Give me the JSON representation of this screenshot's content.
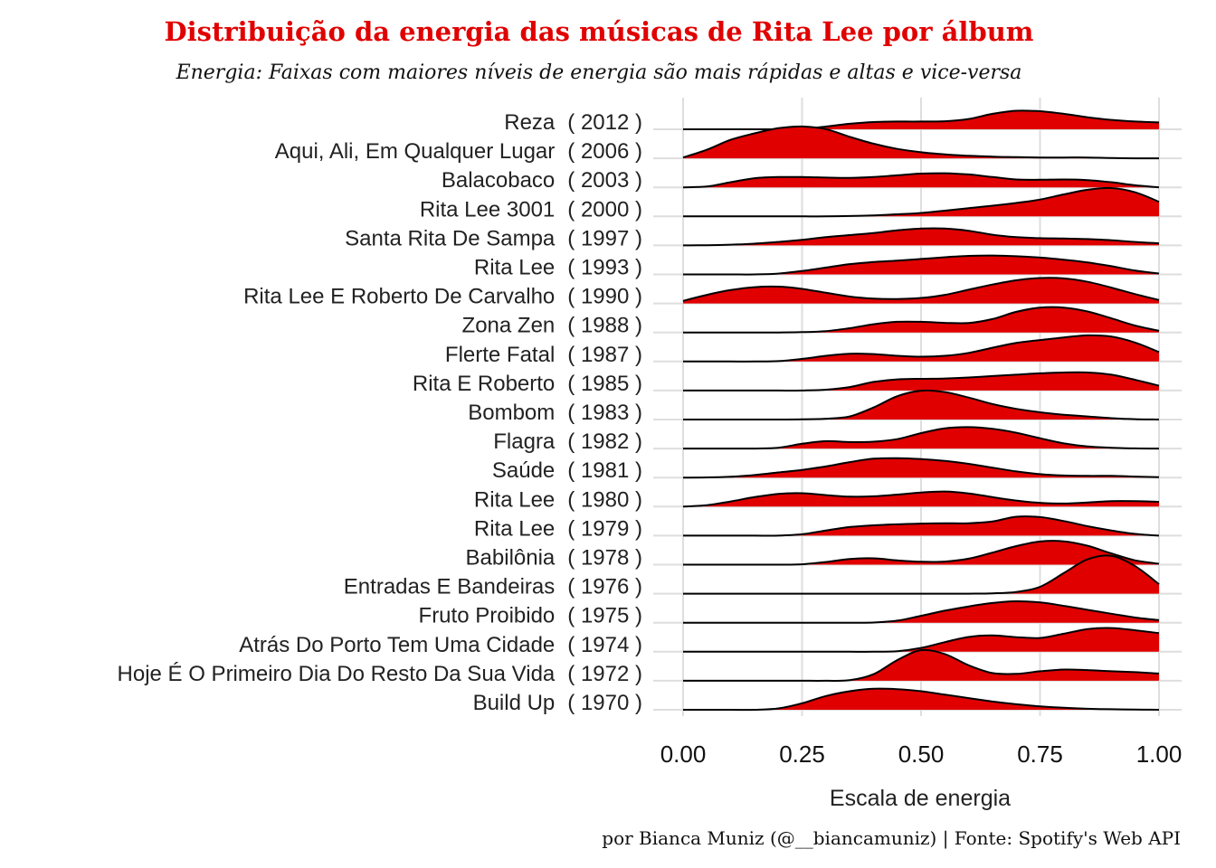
{
  "chart_data": {
    "type": "ridgeline",
    "title": "Distribuição da energia das músicas de Rita Lee por álbum",
    "subtitle": "Energia: Faixas com maiores níveis de energia são mais rápidas e altas e vice-versa",
    "xlabel": "Escala de energia",
    "caption": "por Bianca Muniz (@__biancamuniz) | Fonte: Spotify's Web API",
    "xlim": [
      0,
      1
    ],
    "x_ticks": [
      "0.00",
      "0.25",
      "0.50",
      "0.75",
      "1.00"
    ],
    "fill_color": "#e00000",
    "line_color": "#000000",
    "grid": true,
    "density_x": [
      0,
      0.05,
      0.1,
      0.15,
      0.2,
      0.25,
      0.3,
      0.35,
      0.4,
      0.45,
      0.5,
      0.55,
      0.6,
      0.65,
      0.7,
      0.75,
      0.8,
      0.85,
      0.9,
      0.95,
      1.0
    ],
    "series": [
      {
        "album": "Reza",
        "year": "( 2012 )",
        "density": [
          0.0,
          0.0,
          0.0,
          0.0,
          0.0,
          0.03,
          0.16,
          0.32,
          0.42,
          0.45,
          0.45,
          0.47,
          0.6,
          0.9,
          1.08,
          1.05,
          0.9,
          0.7,
          0.55,
          0.45,
          0.4
        ]
      },
      {
        "album": "Aqui, Ali, Em Qualquer Lugar",
        "year": "( 2006 )",
        "density": [
          0.05,
          0.5,
          1.08,
          1.45,
          1.75,
          1.85,
          1.7,
          1.25,
          0.85,
          0.55,
          0.35,
          0.23,
          0.15,
          0.1,
          0.07,
          0.05,
          0.05,
          0.05,
          0.02,
          0.0,
          0.0
        ]
      },
      {
        "album": "Balacobaco",
        "year": "( 2003 )",
        "density": [
          0.0,
          0.05,
          0.3,
          0.53,
          0.6,
          0.6,
          0.57,
          0.55,
          0.6,
          0.7,
          0.8,
          0.82,
          0.75,
          0.6,
          0.46,
          0.44,
          0.46,
          0.42,
          0.3,
          0.12,
          0.0
        ]
      },
      {
        "album": "Rita Lee 3001",
        "year": "( 2000 )",
        "density": [
          0.0,
          0.0,
          0.0,
          0.0,
          0.0,
          0.0,
          0.0,
          0.02,
          0.06,
          0.12,
          0.2,
          0.33,
          0.48,
          0.62,
          0.78,
          0.98,
          1.28,
          1.55,
          1.65,
          1.4,
          0.85
        ]
      },
      {
        "album": "Santa Rita De Sampa",
        "year": "( 1997 )",
        "density": [
          0.0,
          0.01,
          0.04,
          0.1,
          0.2,
          0.32,
          0.48,
          0.6,
          0.72,
          0.88,
          0.98,
          0.98,
          0.85,
          0.62,
          0.48,
          0.42,
          0.4,
          0.37,
          0.3,
          0.2,
          0.12
        ]
      },
      {
        "album": "Rita Lee",
        "year": "( 1993 )",
        "density": [
          0.0,
          0.0,
          0.0,
          0.0,
          0.05,
          0.2,
          0.4,
          0.6,
          0.72,
          0.8,
          0.9,
          1.0,
          1.08,
          1.1,
          1.06,
          0.98,
          0.86,
          0.7,
          0.48,
          0.22,
          0.05
        ]
      },
      {
        "album": "Rita Lee E Roberto De Carvalho",
        "year": "( 1990 )",
        "density": [
          0.15,
          0.5,
          0.78,
          0.95,
          0.98,
          0.85,
          0.62,
          0.4,
          0.28,
          0.26,
          0.32,
          0.5,
          0.8,
          1.1,
          1.35,
          1.48,
          1.46,
          1.26,
          0.92,
          0.54,
          0.2
        ]
      },
      {
        "album": "Zona Zen",
        "year": "( 1988 )",
        "density": [
          0.0,
          0.0,
          0.0,
          0.0,
          0.0,
          0.02,
          0.08,
          0.25,
          0.48,
          0.62,
          0.62,
          0.56,
          0.55,
          0.78,
          1.2,
          1.45,
          1.45,
          1.22,
          0.82,
          0.4,
          0.1
        ]
      },
      {
        "album": "Flerte Fatal",
        "year": "( 1987 )",
        "density": [
          0.0,
          0.0,
          0.0,
          0.0,
          0.02,
          0.15,
          0.33,
          0.45,
          0.43,
          0.33,
          0.28,
          0.33,
          0.5,
          0.8,
          1.08,
          1.25,
          1.4,
          1.52,
          1.45,
          1.1,
          0.55
        ]
      },
      {
        "album": "Rita E Roberto",
        "year": "( 1985 )",
        "density": [
          0.0,
          0.0,
          0.0,
          0.0,
          0.0,
          0.0,
          0.05,
          0.2,
          0.5,
          0.65,
          0.68,
          0.7,
          0.76,
          0.84,
          0.92,
          1.0,
          1.05,
          1.05,
          0.92,
          0.62,
          0.28
        ]
      },
      {
        "album": "Bombom",
        "year": "( 1983 )",
        "density": [
          0.0,
          0.0,
          0.0,
          0.0,
          0.0,
          0.01,
          0.05,
          0.18,
          0.7,
          1.36,
          1.68,
          1.6,
          1.28,
          0.9,
          0.62,
          0.42,
          0.28,
          0.18,
          0.08,
          0.02,
          0.0
        ]
      },
      {
        "album": "Flagra",
        "year": "( 1982 )",
        "density": [
          0.0,
          0.0,
          0.0,
          0.0,
          0.05,
          0.28,
          0.43,
          0.38,
          0.4,
          0.55,
          0.9,
          1.18,
          1.25,
          1.15,
          0.92,
          0.6,
          0.3,
          0.12,
          0.05,
          0.01,
          0.0
        ]
      },
      {
        "album": "Saúde",
        "year": "( 1981 )",
        "density": [
          0.0,
          0.01,
          0.05,
          0.15,
          0.3,
          0.45,
          0.65,
          0.9,
          1.1,
          1.13,
          1.08,
          0.97,
          0.8,
          0.58,
          0.36,
          0.2,
          0.12,
          0.1,
          0.1,
          0.06,
          0.02
        ]
      },
      {
        "album": "Rita Lee",
        "year": "( 1980 )",
        "density": [
          0.0,
          0.08,
          0.3,
          0.55,
          0.74,
          0.78,
          0.67,
          0.58,
          0.6,
          0.7,
          0.82,
          0.88,
          0.77,
          0.55,
          0.35,
          0.22,
          0.18,
          0.24,
          0.32,
          0.32,
          0.28
        ]
      },
      {
        "album": "Rita Lee",
        "year": "( 1979 )",
        "density": [
          0.0,
          0.0,
          0.0,
          0.0,
          0.0,
          0.08,
          0.3,
          0.5,
          0.6,
          0.66,
          0.7,
          0.72,
          0.72,
          0.82,
          1.1,
          1.08,
          0.85,
          0.55,
          0.3,
          0.1,
          0.0
        ]
      },
      {
        "album": "Babilônia",
        "year": "( 1978 )",
        "density": [
          0.0,
          0.0,
          0.0,
          0.0,
          0.0,
          0.02,
          0.15,
          0.33,
          0.37,
          0.25,
          0.17,
          0.18,
          0.35,
          0.7,
          1.08,
          1.35,
          1.36,
          1.1,
          0.65,
          0.25,
          0.05
        ]
      },
      {
        "album": "Entradas E Bandeiras",
        "year": "( 1976 )",
        "density": [
          0.0,
          0.0,
          0.0,
          0.0,
          0.0,
          0.0,
          0.0,
          0.0,
          0.0,
          0.0,
          0.0,
          0.0,
          0.0,
          0.02,
          0.1,
          0.4,
          1.2,
          2.0,
          2.2,
          1.6,
          0.55
        ]
      },
      {
        "album": "Fruto Proibido",
        "year": "( 1975 )",
        "density": [
          0.0,
          0.0,
          0.0,
          0.0,
          0.0,
          0.0,
          0.0,
          0.0,
          0.01,
          0.12,
          0.4,
          0.7,
          0.95,
          1.15,
          1.25,
          1.18,
          0.98,
          0.75,
          0.52,
          0.3,
          0.15
        ]
      },
      {
        "album": "Atrás Do Porto Tem Uma Cidade",
        "year": "( 1974 )",
        "density": [
          0.0,
          0.0,
          0.0,
          0.0,
          0.0,
          0.0,
          0.0,
          0.0,
          0.0,
          0.03,
          0.22,
          0.56,
          0.86,
          0.95,
          0.85,
          0.8,
          1.05,
          1.32,
          1.38,
          1.25,
          1.08
        ]
      },
      {
        "album": "Hoje É O Primeiro Dia Do Resto Da Sua Vida",
        "year": "( 1972 )",
        "density": [
          0.0,
          0.0,
          0.0,
          0.0,
          0.0,
          0.0,
          0.0,
          0.03,
          0.38,
          1.2,
          1.78,
          1.55,
          0.9,
          0.45,
          0.4,
          0.55,
          0.65,
          0.62,
          0.55,
          0.5,
          0.42
        ]
      },
      {
        "album": "Build Up",
        "year": "( 1970 )",
        "density": [
          0.0,
          0.0,
          0.0,
          0.0,
          0.08,
          0.38,
          0.8,
          1.08,
          1.22,
          1.2,
          1.08,
          0.88,
          0.68,
          0.48,
          0.32,
          0.2,
          0.12,
          0.06,
          0.03,
          0.01,
          0.0
        ]
      }
    ]
  }
}
